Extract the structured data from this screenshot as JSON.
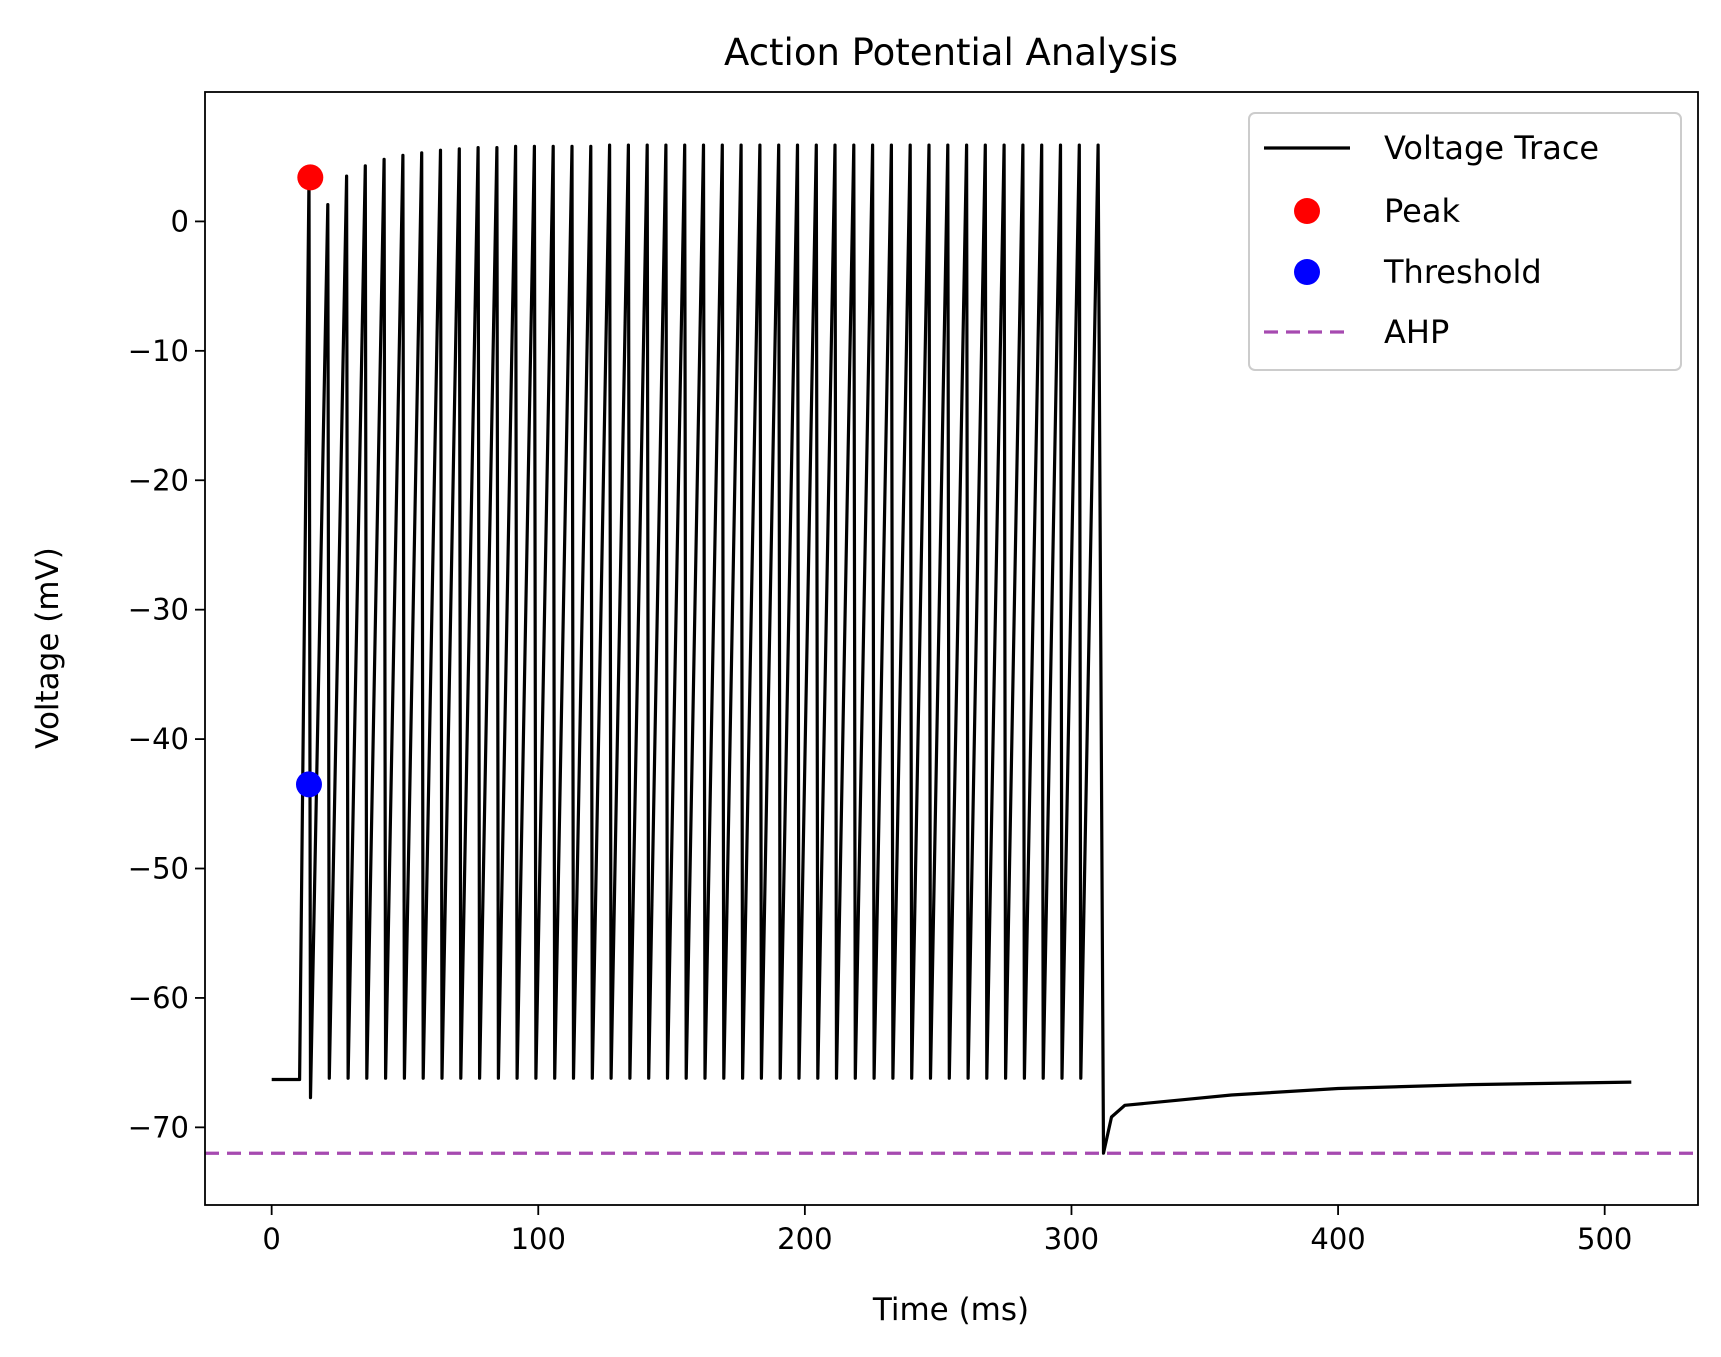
{
  "chart_data": {
    "type": "line",
    "title": "Action Potential Analysis",
    "xlabel": "Time (ms)",
    "ylabel": "Voltage (mV)",
    "xlim": [
      -25,
      535
    ],
    "ylim": [
      -76,
      10
    ],
    "x_ticks": [
      0,
      100,
      200,
      300,
      400,
      500
    ],
    "y_ticks": [
      0,
      -10,
      -20,
      -30,
      -40,
      -50,
      -60,
      -70
    ],
    "x_tick_labels": [
      "0",
      "100",
      "200",
      "300",
      "400",
      "500"
    ],
    "y_tick_labels": [
      "0",
      "−10",
      "−20",
      "−30",
      "−40",
      "−50",
      "−60",
      "−70"
    ],
    "grid": false,
    "legend_position": "top-right",
    "series": [
      {
        "name": "Voltage Trace",
        "kind": "line",
        "color": "#000000",
        "resting_potential": -66.3,
        "stimulus_onset": 10.5,
        "stimulus_offset": 310,
        "first_spike_peak": 3.4,
        "spike_peaks": [
          3.4,
          1.3,
          3.5,
          4.3,
          4.8,
          5.1,
          5.3,
          5.5,
          5.6,
          5.7,
          5.7,
          5.8,
          5.8,
          5.8,
          5.8,
          5.8,
          5.9,
          5.9,
          5.9,
          5.9,
          5.9,
          5.9,
          5.9,
          5.9,
          5.9,
          5.9,
          5.9,
          5.9,
          5.9,
          5.9,
          5.9,
          5.9,
          5.9,
          5.9,
          5.9,
          5.9,
          5.9,
          5.9,
          5.9,
          5.9,
          5.9,
          5.9,
          5.9
        ],
        "first_trough": -67.7,
        "spike_trough": -66.2,
        "post_stimulus_min": -72.0,
        "recovery": [
          [
            312,
            -72.0
          ],
          [
            315,
            -69.2
          ],
          [
            320,
            -68.3
          ],
          [
            340,
            -67.9
          ],
          [
            360,
            -67.5
          ],
          [
            400,
            -67.0
          ],
          [
            450,
            -66.7
          ],
          [
            510,
            -66.5
          ]
        ],
        "end_time": 510
      },
      {
        "name": "Peak",
        "kind": "scatter",
        "color": "#ff0000",
        "points": [
          [
            14.5,
            3.4
          ]
        ]
      },
      {
        "name": "Threshold",
        "kind": "scatter",
        "color": "#0000ff",
        "points": [
          [
            14.0,
            -43.5
          ]
        ]
      },
      {
        "name": "AHP",
        "kind": "hline",
        "color": "#a64ab0",
        "y": -72.0
      }
    ]
  }
}
